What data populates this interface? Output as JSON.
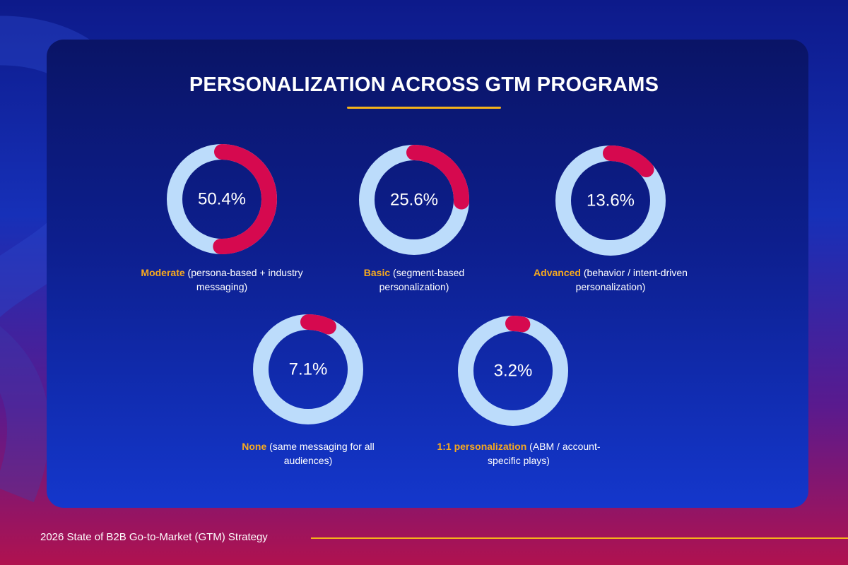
{
  "title": "PERSONALIZATION ACROSS GTM PROGRAMS",
  "footer": "2026 State of B2B Go-to-Market (GTM) Strategy",
  "colors": {
    "ring_track": "#bcdcfb",
    "ring_value": "#d6094f",
    "accent": "#f5b21a",
    "label_highlight": "#f7a91e"
  },
  "chart_data": {
    "type": "pie",
    "variant": "donut",
    "title": "PERSONALIZATION ACROSS GTM PROGRAMS",
    "unit": "%",
    "items": [
      {
        "value": 50.4,
        "display": "50.4%",
        "lead": "Moderate",
        "rest": " (persona-based + industry messaging)"
      },
      {
        "value": 25.6,
        "display": "25.6%",
        "lead": "Basic",
        "rest": " (segment-based personalization)"
      },
      {
        "value": 13.6,
        "display": "13.6%",
        "lead": "Advanced",
        "rest": " (behavior / intent-driven personalization)"
      },
      {
        "value": 7.1,
        "display": "7.1%",
        "lead": "None",
        "rest": " (same messaging for all audiences)"
      },
      {
        "value": 3.2,
        "display": "3.2%",
        "lead": "1:1 personalization",
        "rest": " (ABM / account-specific plays)"
      }
    ]
  }
}
